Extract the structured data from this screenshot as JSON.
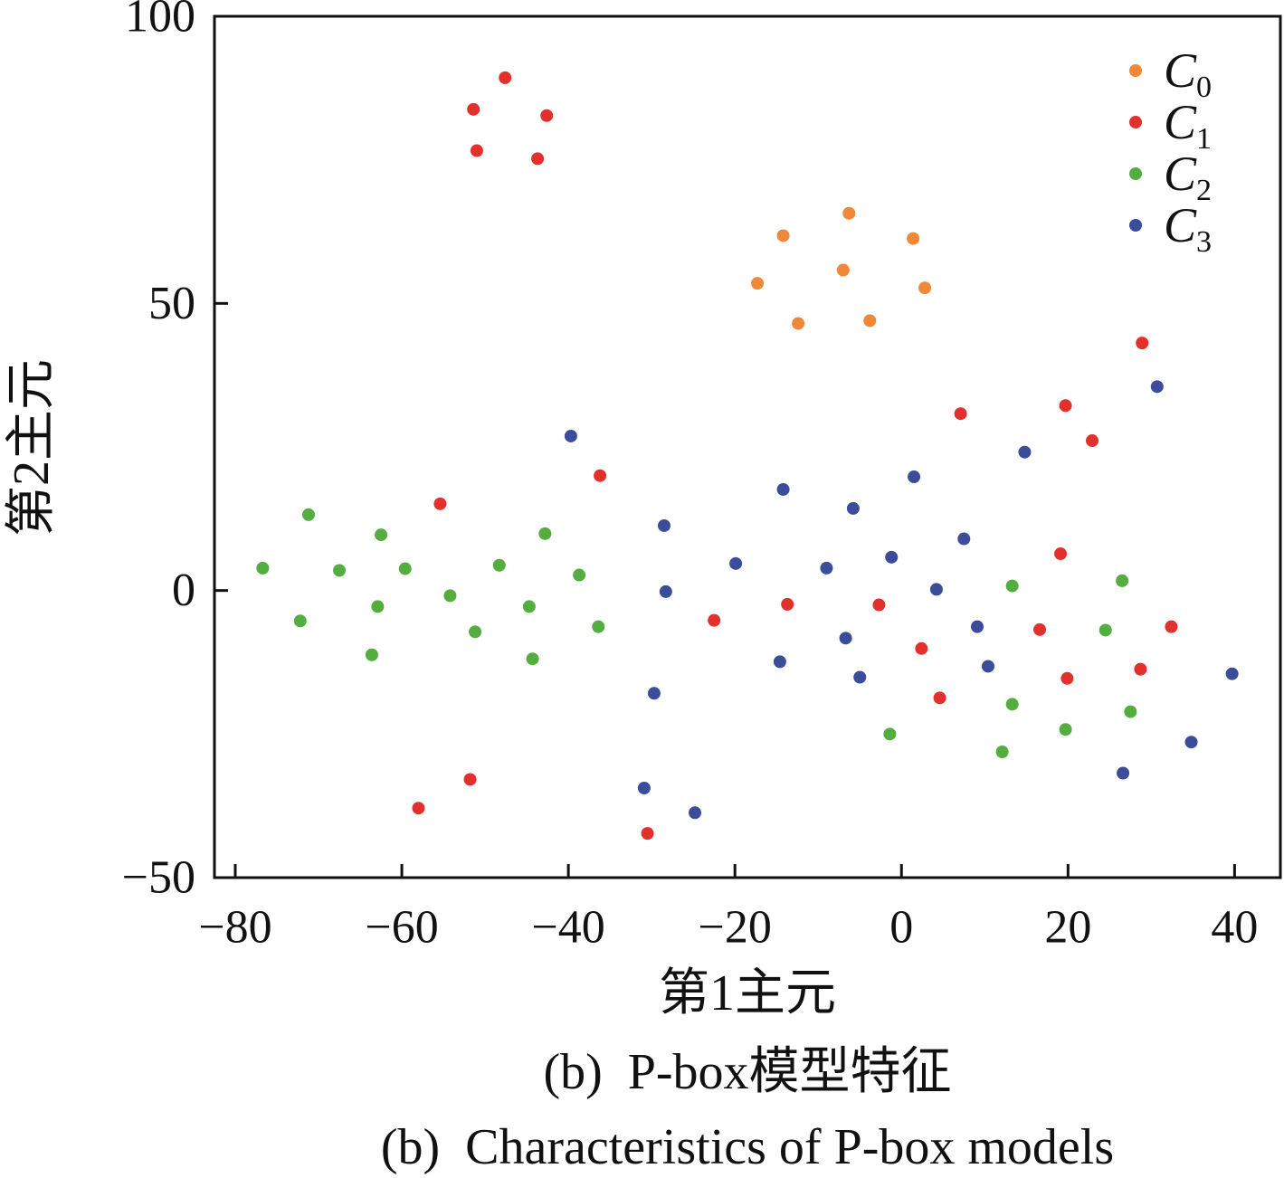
{
  "chart_data": {
    "type": "scatter",
    "xlabel": "第1主元",
    "ylabel": "第2主元",
    "xlim": [
      -82.5,
      45.5
    ],
    "ylim": [
      -50,
      100
    ],
    "xticks": [
      -80,
      -60,
      -40,
      -20,
      0,
      20,
      40
    ],
    "xtick_labels": [
      "−80",
      "−60",
      "−40",
      "−20",
      "0",
      "20",
      "40"
    ],
    "yticks": [
      -50,
      0,
      50,
      100
    ],
    "ytick_labels": [
      "−50",
      "0",
      "50",
      "100"
    ],
    "grid": false,
    "legend": "top-right",
    "series": [
      {
        "name": "C0",
        "color": "#f0883a",
        "x": [
          -6.3,
          -14.2,
          1.4,
          -7.0,
          -17.3,
          2.8,
          -12.4,
          -3.8
        ],
        "y": [
          65.7,
          61.8,
          61.3,
          55.8,
          53.5,
          52.7,
          46.5,
          47.0
        ]
      },
      {
        "name": "C1",
        "color": "#e2302d",
        "x": [
          -47.6,
          -51.4,
          -42.6,
          -51.0,
          -43.7,
          28.9,
          19.7,
          7.1,
          22.9,
          -36.2,
          -55.4,
          19.1,
          -13.7,
          -2.7,
          -22.5,
          16.6,
          32.4,
          2.4,
          28.7,
          19.9,
          4.6,
          -51.8,
          -58.0,
          -30.5
        ],
        "y": [
          89.3,
          83.8,
          82.7,
          76.6,
          75.2,
          43.1,
          32.2,
          30.8,
          26.1,
          20.0,
          15.1,
          6.4,
          -2.4,
          -2.5,
          -5.2,
          -6.8,
          -6.3,
          -10.1,
          -13.7,
          -15.3,
          -18.7,
          -32.9,
          -37.9,
          -42.3
        ]
      },
      {
        "name": "C2",
        "color": "#54ad3f",
        "x": [
          -76.7,
          -71.2,
          -72.2,
          -67.5,
          -62.5,
          -62.9,
          -63.6,
          -59.6,
          -54.2,
          -51.2,
          -48.3,
          -44.7,
          -44.3,
          -42.8,
          -38.7,
          -36.4,
          13.3,
          26.5,
          24.5,
          13.3,
          27.5,
          19.7,
          -1.4,
          12.1
        ],
        "y": [
          3.9,
          13.2,
          -5.3,
          3.5,
          9.7,
          -2.8,
          -11.2,
          3.8,
          -0.9,
          -7.2,
          4.4,
          -2.8,
          -11.9,
          9.9,
          2.7,
          -6.3,
          0.8,
          1.7,
          -6.9,
          -19.8,
          -21.1,
          -24.2,
          -25.0,
          -28.1
        ]
      },
      {
        "name": "C3",
        "color": "#3b4c9b",
        "x": [
          30.7,
          14.8,
          -39.7,
          1.5,
          -14.2,
          -5.8,
          -28.5,
          7.5,
          -1.2,
          -19.9,
          -9.0,
          -28.3,
          4.2,
          9.1,
          -6.7,
          -14.6,
          10.4,
          -5.0,
          39.7,
          -29.7,
          34.8,
          26.6,
          -30.9,
          -24.8
        ],
        "y": [
          35.5,
          24.1,
          26.9,
          19.8,
          17.6,
          14.3,
          11.3,
          9.0,
          5.8,
          4.7,
          3.9,
          -0.2,
          0.2,
          -6.3,
          -8.3,
          -12.4,
          -13.2,
          -15.1,
          -14.5,
          -17.9,
          -26.4,
          -31.8,
          -34.4,
          -38.7
        ]
      }
    ]
  },
  "caption": {
    "zh": "(b)  P-box模型特征",
    "en": "(b)  Characteristics of P-box models"
  }
}
